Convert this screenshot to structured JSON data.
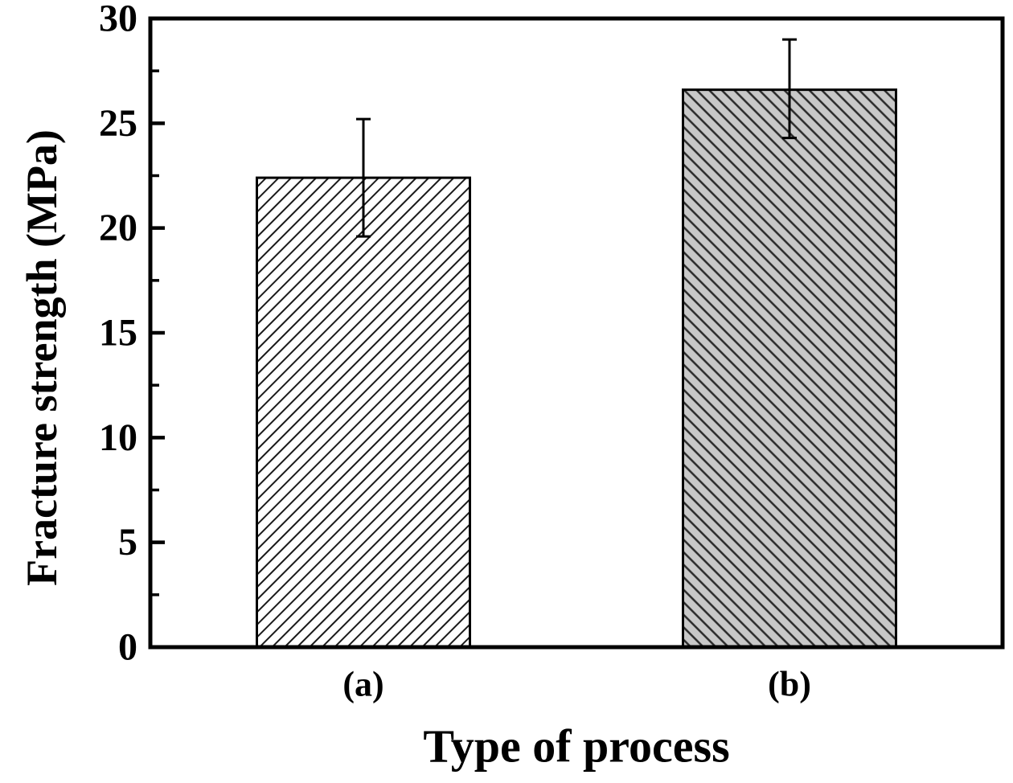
{
  "figure": {
    "background": "#ffffff"
  },
  "chart_data": {
    "type": "bar",
    "title": "",
    "xlabel": "Type of process",
    "ylabel": "Fracture strength (MPa)",
    "categories": [
      "(a)",
      "(b)"
    ],
    "series": [
      {
        "name": "Fracture strength",
        "values": [
          22.4,
          26.6
        ],
        "error_lower": [
          19.6,
          24.3
        ],
        "error_upper": [
          25.2,
          29.0
        ]
      }
    ],
    "ylim": [
      0,
      30
    ],
    "yticks_major": [
      0,
      5,
      10,
      15,
      20,
      25,
      30
    ],
    "ytick_minor_step": 2.5,
    "grid": false,
    "legend": "none",
    "tick_direction": "in",
    "axis_color": "#000000",
    "text_color": "#000000",
    "bar_styles": [
      {
        "fill": "#ffffff",
        "hatch_direction": "forward-slash",
        "hatch_color": "#1a1a1a",
        "hatch_spacing": 11,
        "hatch_line_width": 2
      },
      {
        "fill": "#c8c8c8",
        "hatch_direction": "back-slash",
        "hatch_color": "#2a2a2a",
        "hatch_spacing": 11,
        "hatch_line_width": 2.5
      }
    ]
  }
}
